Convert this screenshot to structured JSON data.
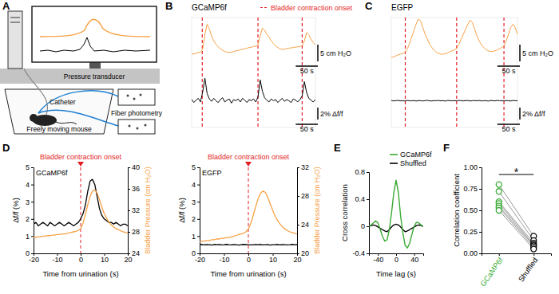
{
  "diagram": {
    "panel": "A",
    "labels": {
      "pressure_transducer": "Pressure transducer",
      "catheter": "Catheter",
      "fiber_photometry": "Fiber photometry",
      "mouse": "Freely moving mouse"
    }
  },
  "chart_data": [
    {
      "panel": "B",
      "type": "line",
      "title": "GCaMP6f",
      "tick_labels": false,
      "x": [
        0,
        5,
        10,
        15,
        20,
        25,
        30,
        35,
        40,
        45,
        50,
        55,
        60,
        65,
        70,
        75,
        80,
        85,
        90,
        95,
        100,
        105,
        110,
        115,
        120,
        125,
        130,
        135,
        140,
        145,
        150,
        155,
        160,
        165,
        170,
        175,
        180,
        185,
        190,
        195,
        200,
        205,
        210,
        215,
        220,
        225,
        230,
        235,
        240,
        245,
        250,
        255,
        260,
        265,
        270,
        275,
        280
      ],
      "xlim": [
        0,
        280
      ],
      "ylim": [
        5,
        38
      ],
      "y2lim": [
        -4.5,
        14
      ],
      "series": [
        {
          "color": "#f7a145",
          "values": [
            27.2,
            27.0,
            27.3,
            27.5,
            27.6,
            28.5,
            33.0,
            36.0,
            34.5,
            32.5,
            31.0,
            30.0,
            29.2,
            28.6,
            28.2,
            27.8,
            27.6,
            27.5,
            27.6,
            27.8,
            28.0,
            28.1,
            28.3,
            28.5,
            28.6,
            28.8,
            29.0,
            29.1,
            29.3,
            29.4,
            29.8,
            32.5,
            34.8,
            34.2,
            33.0,
            32.2,
            31.0,
            30.2,
            29.5,
            29.0,
            28.6,
            28.4,
            28.5,
            28.7,
            28.8,
            28.9,
            29.0,
            29.1,
            29.2,
            29.3,
            29.6,
            31.0,
            33.5,
            32.8,
            31.5,
            30.5,
            29.8
          ]
        },
        {
          "color": "#000000",
          "axis": "y2",
          "values": [
            0.2,
            -0.3,
            0.1,
            0.4,
            -0.2,
            1.5,
            3.8,
            1.2,
            0.3,
            -0.1,
            0.4,
            0.0,
            -0.3,
            0.2,
            0.5,
            -0.2,
            0.1,
            0.3,
            -0.4,
            0.2,
            0.0,
            0.3,
            -0.2,
            0.4,
            0.1,
            -0.3,
            0.2,
            0.0,
            0.3,
            -0.2,
            0.6,
            3.5,
            1.6,
            0.5,
            0.1,
            -0.2,
            0.3,
            0.0,
            0.2,
            -0.3,
            0.1,
            0.4,
            -0.1,
            0.2,
            0.0,
            -0.3,
            0.3,
            0.1,
            -0.2,
            0.2,
            0.8,
            3.2,
            1.4,
            0.4,
            0.1,
            -0.2,
            0.2
          ]
        }
      ],
      "events": {
        "label": "Bladder contraction onset",
        "color": "#e41e26",
        "line_style": "dashed",
        "x": [
          24,
          150,
          250
        ]
      },
      "scale_bars": [
        {
          "axis": "y",
          "value": 5,
          "label": "5 cm H₂O"
        },
        {
          "axis": "x",
          "value": 50,
          "label": "50 s"
        },
        {
          "axis": "y2",
          "value": 2,
          "label": "2% Δf/f"
        },
        {
          "axis": "x",
          "value": 50,
          "label": "50 s"
        }
      ]
    },
    {
      "panel": "C",
      "type": "line",
      "title": "EGFP",
      "tick_labels": false,
      "x": [
        0,
        5,
        10,
        15,
        20,
        25,
        30,
        35,
        40,
        45,
        50,
        55,
        60,
        65,
        70,
        75,
        80,
        85,
        90,
        95,
        100,
        105,
        110,
        115,
        120,
        125,
        130,
        135,
        140,
        145,
        150,
        155,
        160,
        165,
        170,
        175,
        180,
        185,
        190,
        195,
        200,
        205,
        210,
        215,
        220,
        225,
        230,
        235,
        240,
        245,
        250,
        255,
        260,
        265,
        270,
        275,
        280
      ],
      "xlim": [
        0,
        280
      ],
      "ylim": [
        5,
        38
      ],
      "y2lim": [
        -4.5,
        14
      ],
      "series": [
        {
          "color": "#f7a145",
          "values": [
            26.0,
            26.2,
            26.5,
            26.8,
            27.0,
            27.2,
            27.5,
            28.5,
            30.0,
            32.0,
            34.0,
            36.0,
            37.5,
            37.0,
            35.0,
            33.0,
            31.5,
            30.0,
            29.0,
            28.2,
            27.6,
            27.2,
            27.0,
            27.0,
            27.2,
            27.4,
            27.7,
            28.0,
            28.3,
            28.8,
            30.0,
            31.5,
            33.0,
            34.5,
            36.0,
            37.2,
            36.5,
            34.5,
            32.5,
            31.0,
            29.8,
            29.0,
            28.4,
            28.0,
            27.8,
            27.8,
            28.0,
            28.3,
            28.6,
            29.0,
            29.5,
            31.0,
            33.0,
            35.0,
            36.0,
            35.0,
            33.0
          ]
        },
        {
          "color": "#000000",
          "axis": "y2",
          "values": [
            0.05,
            -0.04,
            0.02,
            0.06,
            -0.03,
            0.01,
            -0.05,
            0.04,
            0.0,
            -0.02,
            0.05,
            -0.06,
            0.03,
            0.01,
            -0.04,
            0.02,
            0.06,
            -0.01,
            -0.05,
            0.03,
            0.0,
            0.04,
            -0.03,
            0.02,
            -0.06,
            0.05,
            0.01,
            -0.02,
            0.03,
            -0.04,
            0.06,
            0.0,
            -0.03,
            0.02,
            0.04,
            -0.05,
            0.01,
            0.03,
            -0.02,
            0.05,
            -0.04,
            0.0,
            0.02,
            -0.06,
            0.04,
            0.01,
            -0.03,
            0.05,
            -0.01,
            0.02,
            -0.04,
            0.03,
            0.0,
            -0.05,
            0.04,
            0.01,
            -0.02
          ]
        }
      ],
      "events": {
        "color": "#e41e26",
        "line_style": "dashed",
        "x": [
          31,
          145,
          250
        ]
      },
      "scale_bars": [
        {
          "axis": "y",
          "value": 5,
          "label": "5 cm H₂O"
        },
        {
          "axis": "x",
          "value": 50,
          "label": "50 s"
        },
        {
          "axis": "y2",
          "value": 2,
          "label": "2% Δf/f"
        },
        {
          "axis": "x",
          "value": 50,
          "label": "50 s"
        }
      ]
    },
    {
      "panel": "D",
      "type": "line",
      "title": "GCaMP6f",
      "x": [
        -20,
        -19,
        -18,
        -17,
        -16,
        -15,
        -14,
        -13,
        -12,
        -11,
        -10,
        -9,
        -8,
        -7,
        -6,
        -5,
        -4,
        -3,
        -2,
        -1,
        0,
        1,
        2,
        3,
        4,
        5,
        6,
        7,
        8,
        9,
        10,
        11,
        12,
        13,
        14,
        15,
        16,
        17,
        18,
        19,
        20
      ],
      "xlim": [
        -20,
        20
      ],
      "xticks": [
        -20,
        -10,
        0,
        10,
        20
      ],
      "ylim": [
        0,
        5
      ],
      "yticks": [
        0,
        1,
        2,
        3,
        4,
        5
      ],
      "y2lim": [
        24,
        40
      ],
      "y2ticks": [
        24,
        28,
        32,
        36,
        40
      ],
      "xlabel": "Time from urination (s)",
      "ylabel": "Δf/f (%)",
      "y2label": "Bladder Pressure (cm H₂O)",
      "series": [
        {
          "color": "#000000",
          "values": [
            1.7,
            1.8,
            1.6,
            1.7,
            1.8,
            1.7,
            1.6,
            1.8,
            1.7,
            1.6,
            1.7,
            1.8,
            1.7,
            1.6,
            1.7,
            1.8,
            1.7,
            1.6,
            1.7,
            1.8,
            2.0,
            2.3,
            2.8,
            3.6,
            4.2,
            4.3,
            4.0,
            3.3,
            2.6,
            2.2,
            2.0,
            1.9,
            1.8,
            1.8,
            1.7,
            1.8,
            1.7,
            1.6,
            1.7,
            1.7,
            1.6
          ]
        },
        {
          "color": "#f7a145",
          "axis": "y2",
          "values": [
            27.0,
            27.0,
            27.1,
            27.1,
            27.2,
            27.2,
            27.3,
            27.3,
            27.4,
            27.4,
            27.5,
            27.5,
            27.6,
            27.6,
            27.7,
            27.8,
            27.9,
            28.0,
            28.1,
            28.3,
            28.6,
            29.6,
            31.2,
            33.0,
            34.6,
            35.6,
            35.8,
            35.2,
            34.0,
            32.6,
            31.4,
            30.5,
            29.8,
            29.3,
            28.9,
            28.6,
            28.4,
            28.2,
            28.0,
            27.9,
            27.8
          ]
        }
      ],
      "events": {
        "label": "Bladder contraction onset",
        "color": "#e41e26",
        "line_style": "dashed",
        "x": [
          0
        ]
      }
    },
    {
      "type": "line",
      "title": "EGFP",
      "x": [
        -20,
        -19,
        -18,
        -17,
        -16,
        -15,
        -14,
        -13,
        -12,
        -11,
        -10,
        -9,
        -8,
        -7,
        -6,
        -5,
        -4,
        -3,
        -2,
        -1,
        0,
        1,
        2,
        3,
        4,
        5,
        6,
        7,
        8,
        9,
        10,
        11,
        12,
        13,
        14,
        15,
        16,
        17,
        18,
        19,
        20
      ],
      "xlim": [
        -20,
        20
      ],
      "xticks": [
        -20,
        -10,
        0,
        10,
        20
      ],
      "ylim": [
        0,
        5
      ],
      "yticks": [
        0,
        1,
        2,
        3,
        4,
        5
      ],
      "y2lim": [
        20,
        32
      ],
      "y2ticks": [
        20,
        24,
        28,
        32
      ],
      "xlabel": "Time from urination (s)",
      "ylabel": "Δf/f (%)",
      "y2label": "Bladder Pressure (cm H₂O)",
      "series": [
        {
          "color": "#000000",
          "values": [
            0.5,
            0.52,
            0.49,
            0.51,
            0.5,
            0.48,
            0.52,
            0.5,
            0.51,
            0.49,
            0.5,
            0.52,
            0.5,
            0.49,
            0.51,
            0.5,
            0.48,
            0.5,
            0.52,
            0.51,
            0.5,
            0.49,
            0.5,
            0.51,
            0.5,
            0.52,
            0.49,
            0.5,
            0.51,
            0.48,
            0.5,
            0.5,
            0.52,
            0.49,
            0.51,
            0.5,
            0.49,
            0.5,
            0.52,
            0.5,
            0.51
          ]
        },
        {
          "color": "#f7a145",
          "axis": "y2",
          "values": [
            21.6,
            21.7,
            21.7,
            21.8,
            21.8,
            21.9,
            21.9,
            22.0,
            22.0,
            22.1,
            22.1,
            22.2,
            22.2,
            22.3,
            22.4,
            22.5,
            22.6,
            22.7,
            22.8,
            23.0,
            23.4,
            24.2,
            25.3,
            26.5,
            27.6,
            28.4,
            28.7,
            28.5,
            27.8,
            26.9,
            26.0,
            25.2,
            24.6,
            24.1,
            23.7,
            23.4,
            23.2,
            23.0,
            22.9,
            22.8,
            22.7
          ]
        }
      ],
      "events": {
        "label": "Bladder contraction onset",
        "color": "#e41e26",
        "line_style": "dashed",
        "x": [
          0
        ]
      }
    },
    {
      "panel": "E",
      "type": "line",
      "x": [
        -60,
        -55,
        -50,
        -45,
        -40,
        -35,
        -30,
        -25,
        -20,
        -15,
        -10,
        -5,
        0,
        5,
        10,
        15,
        20,
        25,
        30,
        35,
        40,
        45,
        50,
        55,
        60
      ],
      "xlim": [
        -60,
        60
      ],
      "xticks": [
        -40,
        0,
        40
      ],
      "ylim": [
        -0.4,
        0.8
      ],
      "yticks": [
        -0.4,
        0,
        0.4,
        0.8
      ],
      "xlabel": "Time lag (s)",
      "ylabel": "Cross correlation",
      "legend": "upper right",
      "series": [
        {
          "name": "GCaMP6f",
          "color": "#3aaa35",
          "values": [
            0.0,
            0.02,
            0.05,
            0.08,
            0.05,
            -0.05,
            -0.15,
            -0.22,
            -0.2,
            -0.05,
            0.2,
            0.5,
            0.68,
            0.5,
            0.15,
            -0.1,
            -0.28,
            -0.32,
            -0.25,
            -0.12,
            0.0,
            0.06,
            0.05,
            0.02,
            0.0
          ]
        },
        {
          "name": "Shuffled",
          "color": "#000000",
          "values": [
            0.0,
            0.01,
            0.02,
            0.01,
            -0.01,
            -0.03,
            -0.05,
            -0.07,
            -0.08,
            -0.05,
            -0.01,
            0.02,
            0.03,
            0.02,
            -0.01,
            -0.05,
            -0.08,
            -0.07,
            -0.05,
            -0.03,
            -0.01,
            0.01,
            0.02,
            0.01,
            0.0
          ]
        }
      ]
    },
    {
      "panel": "F",
      "type": "line",
      "categories": [
        "GCaMP6f",
        "Shuffled"
      ],
      "colors": [
        "#3aaa35",
        "#000000"
      ],
      "marker": "circle",
      "ylim": [
        0,
        1
      ],
      "yticks": [
        {
          "value": 0,
          "label": "0.00"
        },
        0.25,
        {
          "value": 0.5,
          "label": "0.50"
        },
        0.75,
        {
          "value": 1,
          "label": "1.00"
        }
      ],
      "ylabel": "Correlation coefficient",
      "annotations": [
        "*"
      ],
      "series": [
        {
          "color": "#999999",
          "values": [
            0.8,
            0.2
          ]
        },
        {
          "color": "#999999",
          "values": [
            0.72,
            0.15
          ]
        },
        {
          "color": "#999999",
          "values": [
            0.6,
            0.12
          ]
        },
        {
          "color": "#999999",
          "values": [
            0.58,
            0.1
          ]
        },
        {
          "color": "#999999",
          "values": [
            0.55,
            0.09
          ]
        },
        {
          "color": "#999999",
          "values": [
            0.53,
            0.07
          ]
        },
        {
          "color": "#999999",
          "values": [
            0.5,
            0.05
          ]
        }
      ]
    }
  ]
}
